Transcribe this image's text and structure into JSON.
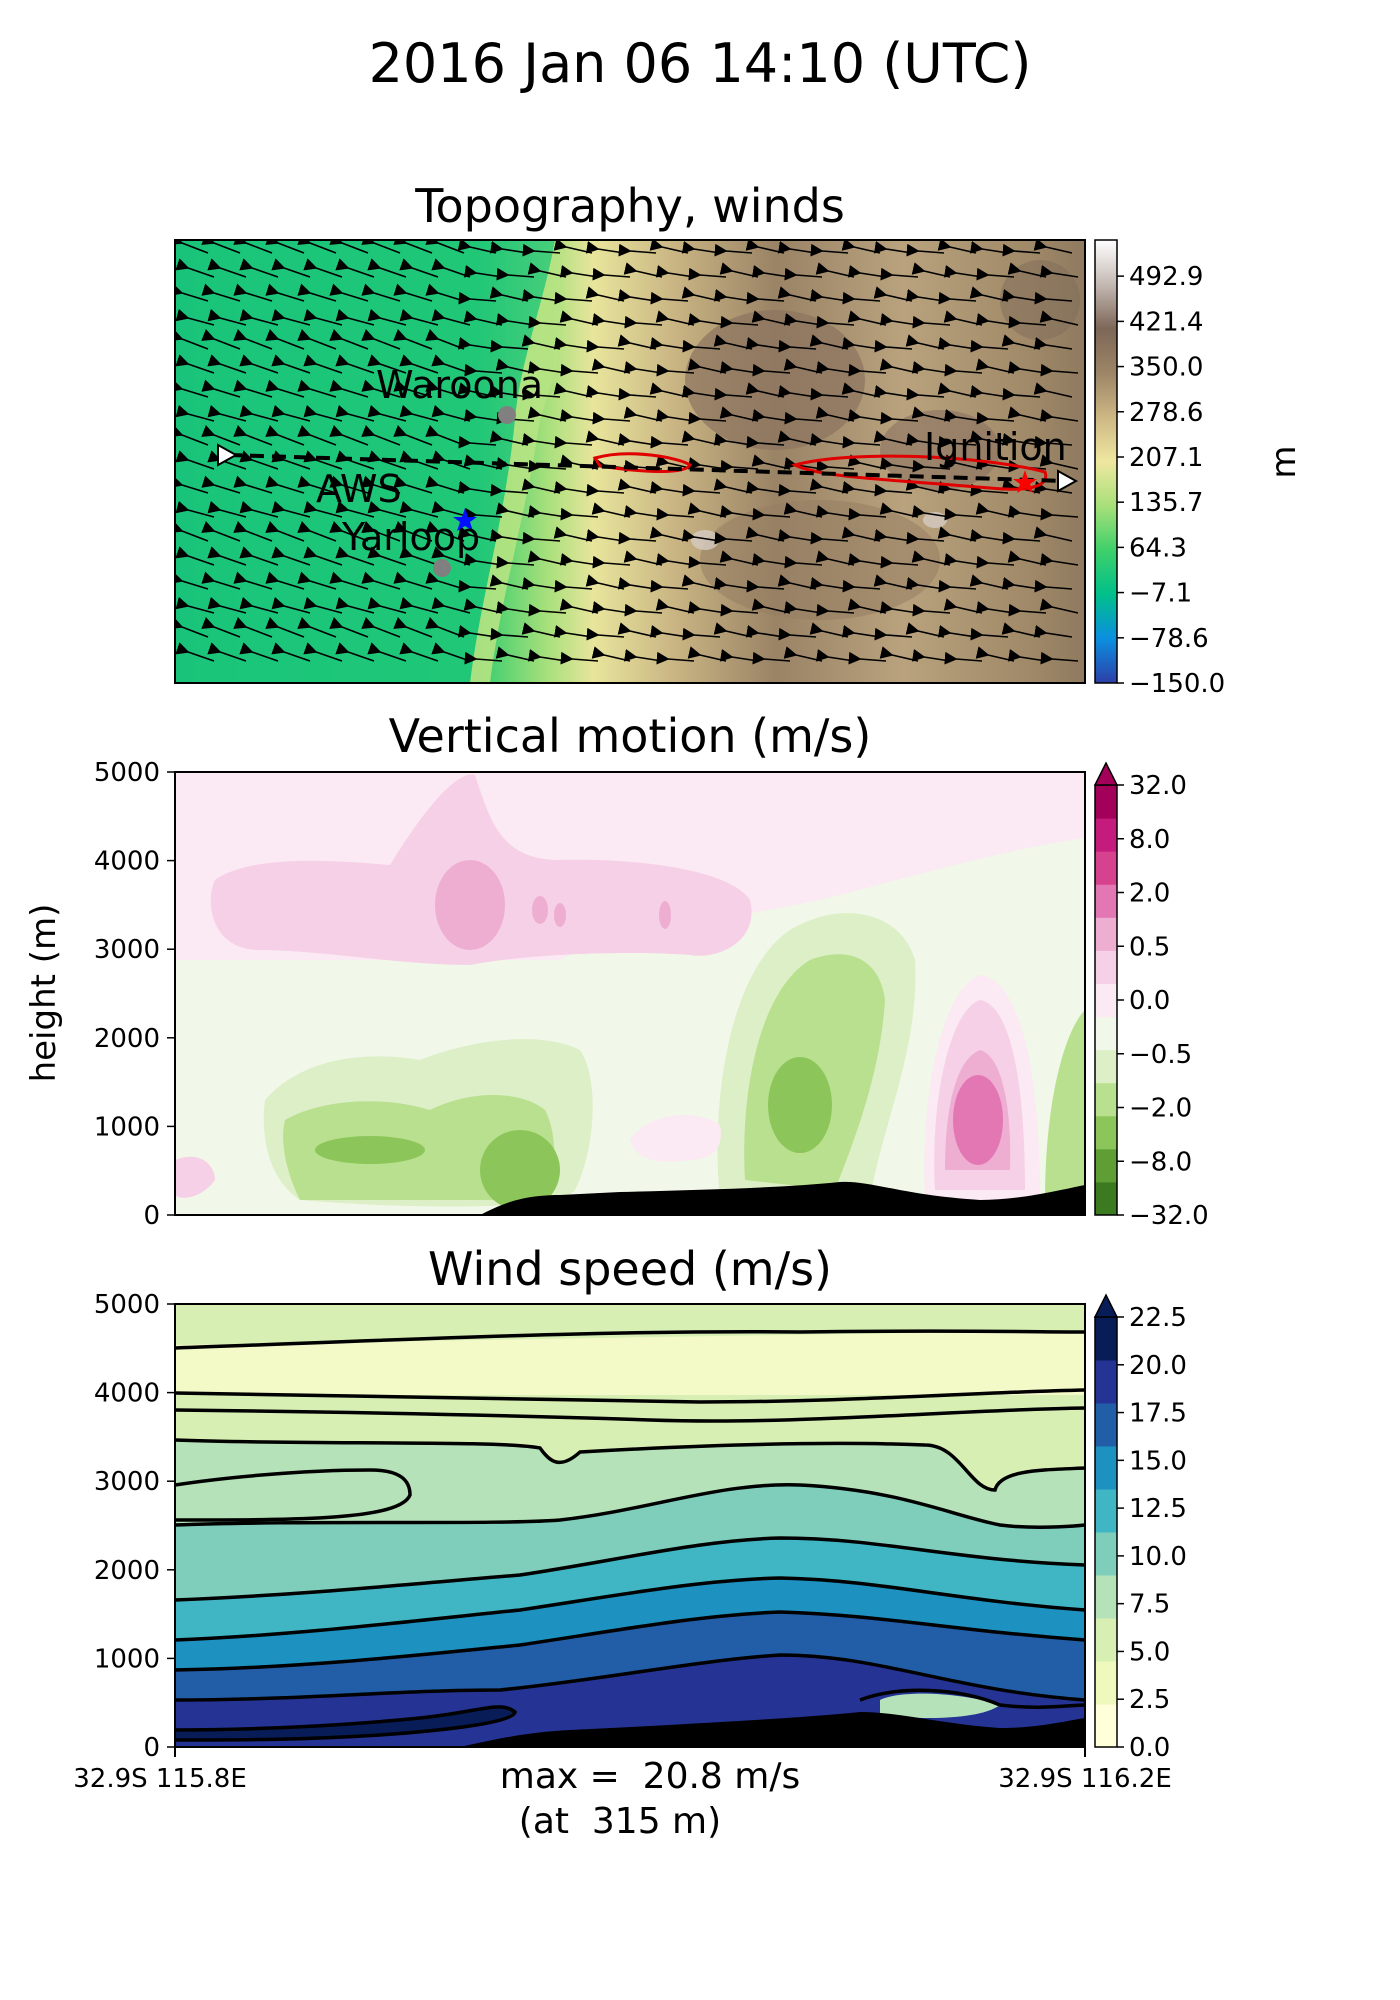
{
  "suptitle": "2016 Jan 06 14:10 (UTC)",
  "chart_data": [
    {
      "type": "heatmap",
      "title": "Topography, winds",
      "colorbar": {
        "label": "m",
        "ticks": [
          "492.9",
          "421.4",
          "350.0",
          "278.6",
          "207.1",
          "135.7",
          "64.3",
          "−7.1",
          "−78.6",
          "−150.0"
        ],
        "range": [
          -150.0,
          550.0
        ],
        "colors": [
          "#2d3fa8",
          "#0b8fe0",
          "#00c08a",
          "#3fd06a",
          "#a8e07a",
          "#efe7a0",
          "#cdb784",
          "#9c8566",
          "#7d6757",
          "#c4b9b3",
          "#ffffff"
        ]
      },
      "places": [
        {
          "name": "Waroona",
          "marker": "gray-circle"
        },
        {
          "name": "AWS",
          "marker": "blue-star"
        },
        {
          "name": "Yarloop",
          "marker": "gray-circle"
        },
        {
          "name": "Ignition",
          "marker": "red-star"
        }
      ],
      "cross_section": "dashed-line",
      "wind_arrows": "from east-south-east, roughly uniform"
    },
    {
      "type": "heatmap",
      "title": "Vertical motion (m/s)",
      "ylabel": "height (m)",
      "ylim": [
        0,
        5000
      ],
      "yticks": [
        "5000",
        "4000",
        "3000",
        "2000",
        "1000",
        "0"
      ],
      "colorbar": {
        "ticks": [
          "32.0",
          "8.0",
          "2.0",
          "0.5",
          "0.0",
          "−0.5",
          "−2.0",
          "−8.0",
          "−32.0"
        ],
        "colors": [
          "#a3005a",
          "#c51b7d",
          "#d7428e",
          "#e377b4",
          "#eeaed2",
          "#f6d0e6",
          "#fbe9f3",
          "#f1f7e9",
          "#ddefc6",
          "#b8e08e",
          "#8cc65a",
          "#5e9e34",
          "#3b7a1e"
        ],
        "extend": "max"
      },
      "features": [
        {
          "name": "downdraft core",
          "x_frac": 0.68,
          "height": 1200,
          "sign": "negative"
        },
        {
          "name": "updraft core",
          "x_frac": 0.88,
          "height": 1300,
          "sign": "positive"
        },
        {
          "name": "upper positive band",
          "x_frac": 0.35,
          "height": 3500,
          "sign": "positive"
        }
      ]
    },
    {
      "type": "heatmap",
      "title": "Wind speed (m/s)",
      "ylim": [
        0,
        5000
      ],
      "yticks": [
        "5000",
        "4000",
        "3000",
        "2000",
        "1000",
        "0"
      ],
      "xticks": [
        "32.9S 115.8E",
        "32.9S 116.2E"
      ],
      "colorbar": {
        "ticks": [
          "22.5",
          "20.0",
          "17.5",
          "15.0",
          "12.5",
          "10.0",
          "7.5",
          "5.0",
          "2.5",
          "0.0"
        ],
        "colors": [
          "#ffffd9",
          "#eff9bd",
          "#d7efb3",
          "#b5e2b8",
          "#7fcebb",
          "#40b5c4",
          "#1d91c0",
          "#225ea8",
          "#253494",
          "#081d58"
        ],
        "extend": "max"
      },
      "annotation_line1": "max =  20.8 m/s",
      "annotation_line2": "(at  315 m)",
      "max_speed": 20.8,
      "max_height": 315
    }
  ]
}
